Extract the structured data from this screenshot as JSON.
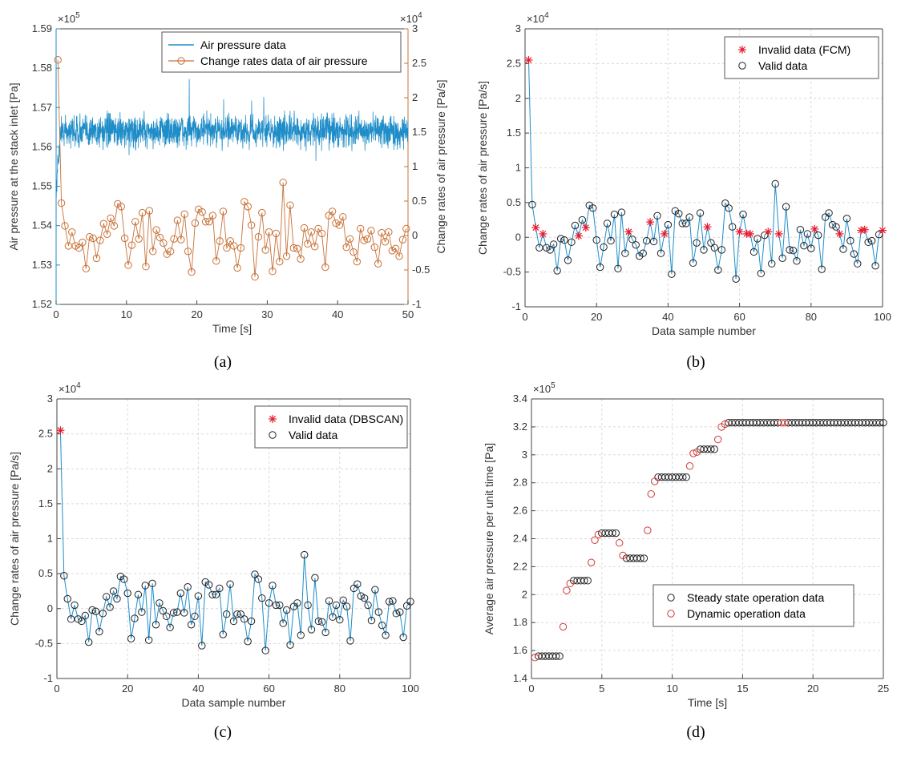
{
  "colors": {
    "blue": "#1f8dc8",
    "orange": "#c87137",
    "red": "#e8192c",
    "black": "#222222",
    "darkred": "#d23a3a",
    "axis": "#444444"
  },
  "chart_data": [
    {
      "id": "a",
      "type": "line",
      "caption": "(a)",
      "xlabel": "Time [s]",
      "ylabel": "Air pressure at the stack inlet [Pa]",
      "ylabel_right": "Change rates of air pressure [Pa/s]",
      "exponent_left": "5",
      "exponent_right": "4",
      "xlim": [
        0,
        50
      ],
      "ylim": [
        152000,
        159000
      ],
      "ylim_right": [
        -10000,
        30000
      ],
      "xticks": [
        0,
        10,
        20,
        30,
        40,
        50
      ],
      "xtick_labels": [
        "0",
        "10",
        "20",
        "30",
        "40",
        "50"
      ],
      "yticks": [
        152000,
        153000,
        154000,
        155000,
        156000,
        157000,
        158000,
        159000
      ],
      "ytick_labels": [
        "1.52",
        "1.53",
        "1.54",
        "1.55",
        "1.56",
        "1.57",
        "1.58",
        "1.59"
      ],
      "yticks_right": [
        -10000,
        -5000,
        0,
        5000,
        10000,
        15000,
        20000,
        25000,
        30000
      ],
      "ytick_labels_right": [
        "-1",
        "-0.5",
        "0",
        "0.5",
        "1",
        "1.5",
        "2",
        "2.5",
        "3"
      ],
      "legend": [
        "Air pressure data",
        "Change rates data of air pressure"
      ],
      "legend_position": "top-right",
      "series": [
        {
          "name": "Air pressure data",
          "axis": "left",
          "mean": 156400,
          "spread": 600,
          "start": 154800,
          "x_end": 50
        },
        {
          "name": "Change rates data of air pressure",
          "axis": "right",
          "x": [
            0.25,
            0.75,
            1.25,
            1.75,
            2.25,
            2.75,
            3.25,
            3.75,
            4.25,
            4.75,
            5.25,
            5.75,
            6.25,
            6.75,
            7.25,
            7.75,
            8.25,
            8.75,
            9.25,
            9.75,
            10.25,
            10.75,
            11.25,
            11.75,
            12.25,
            12.75,
            13.25,
            13.75,
            14.25,
            14.75,
            15.25,
            15.75,
            16.25,
            16.75,
            17.25,
            17.75,
            18.25,
            18.75,
            19.25,
            19.75,
            20.25,
            20.75,
            21.25,
            21.75,
            22.25,
            22.75,
            23.25,
            23.75,
            24.25,
            24.75,
            25.25,
            25.75,
            26.25,
            26.75,
            27.25,
            27.75,
            28.25,
            28.75,
            29.25,
            29.75,
            30.25,
            30.75,
            31.25,
            31.75,
            32.25,
            32.75,
            33.25,
            33.75,
            34.25,
            34.75,
            35.25,
            35.75,
            36.25,
            36.75,
            37.25,
            37.75,
            38.25,
            38.75,
            39.25,
            39.75,
            40.25,
            40.75,
            41.25,
            41.75,
            42.25,
            42.75,
            43.25,
            43.75,
            44.25,
            44.75,
            45.25,
            45.75,
            46.25,
            46.75,
            47.25,
            47.75,
            48.25,
            48.75,
            49.25,
            49.75
          ],
          "values": [
            25500,
            4700,
            1400,
            -1500,
            500,
            -1500,
            -1800,
            -1000,
            -4800,
            -200,
            -400,
            -3300,
            -700,
            1700,
            200,
            2500,
            1400,
            4600,
            4200,
            -400,
            -4300,
            -1400,
            2000,
            -500,
            3300,
            -4500,
            3600,
            -2300,
            800,
            -300,
            -1100,
            -2700,
            -2300,
            -500,
            2200,
            -600,
            3100,
            -2300,
            -5300,
            1800,
            3800,
            3400,
            2000,
            2000,
            2900,
            -3700,
            -800,
            3500,
            -1800,
            -800,
            -1500,
            -4700,
            -1800,
            4900,
            4200,
            1500,
            -6000,
            -200,
            3300,
            -2100,
            500,
            -5200,
            300,
            -3800,
            7700,
            -3000,
            4400,
            -1800,
            -1900,
            -3400,
            1100,
            -1200,
            500,
            -1600,
            1000,
            300,
            -4600,
            2900,
            3500,
            1800,
            1500,
            2700,
            -1700,
            -500,
            -2400,
            -3800,
            1000,
            -700,
            -500,
            700,
            -1700,
            -4100,
            400,
            -900,
            500,
            -2200,
            -1900,
            -3000,
            -600,
            1000
          ]
        }
      ]
    },
    {
      "id": "b",
      "type": "scatter",
      "caption": "(b)",
      "xlabel": "Data sample number",
      "ylabel": "Change rates of air pressure [Pa/s]",
      "exponent_left": "4",
      "xlim": [
        0,
        100
      ],
      "ylim": [
        -10000,
        30000
      ],
      "xticks": [
        0,
        20,
        40,
        60,
        80,
        100
      ],
      "xtick_labels": [
        "0",
        "20",
        "40",
        "60",
        "80",
        "100"
      ],
      "yticks": [
        -10000,
        -5000,
        0,
        5000,
        10000,
        15000,
        20000,
        25000,
        30000
      ],
      "ytick_labels": [
        "-1",
        "-0.5",
        "0",
        "0.5",
        "1",
        "1.5",
        "2",
        "2.5",
        "3"
      ],
      "legend": [
        "Invalid data (FCM)",
        "Valid data"
      ],
      "legend_position": "top-right",
      "invalid_indices": [
        1,
        3,
        5,
        15,
        17,
        29,
        35,
        39,
        51,
        60,
        62,
        63,
        68,
        71,
        81,
        88,
        94,
        95,
        100
      ],
      "values": [
        25500,
        4700,
        1400,
        -1500,
        500,
        -1500,
        -1800,
        -1000,
        -4800,
        -200,
        -400,
        -3300,
        -700,
        1700,
        200,
        2500,
        1400,
        4600,
        4200,
        -400,
        -4300,
        -1400,
        2000,
        -500,
        3300,
        -4500,
        3600,
        -2300,
        800,
        -300,
        -1100,
        -2700,
        -2300,
        -500,
        2200,
        -600,
        3100,
        -2300,
        500,
        1800,
        -5300,
        3800,
        3400,
        2000,
        2000,
        2900,
        -3700,
        -800,
        3500,
        -1800,
        1500,
        -800,
        -1500,
        -4700,
        -1800,
        4900,
        4200,
        1500,
        -6000,
        800,
        3300,
        500,
        500,
        -2100,
        -200,
        -5200,
        300,
        800,
        -3800,
        7700,
        500,
        -3000,
        4400,
        -1800,
        -1900,
        -3400,
        1100,
        -1200,
        500,
        -1600,
        1200,
        300,
        -4600,
        2900,
        3500,
        1800,
        1500,
        500,
        -1700,
        2700,
        -500,
        -2400,
        -3800,
        1000,
        1100,
        -700,
        -500,
        -4100,
        400,
        1000
      ]
    },
    {
      "id": "c",
      "type": "scatter",
      "caption": "(c)",
      "xlabel": "Data sample number",
      "ylabel": "Change rates of air pressure [Pa/s]",
      "exponent_left": "4",
      "xlim": [
        0,
        100
      ],
      "ylim": [
        -10000,
        30000
      ],
      "xticks": [
        0,
        20,
        40,
        60,
        80,
        100
      ],
      "xtick_labels": [
        "0",
        "20",
        "40",
        "60",
        "80",
        "100"
      ],
      "yticks": [
        -10000,
        -5000,
        0,
        5000,
        10000,
        15000,
        20000,
        25000,
        30000
      ],
      "ytick_labels": [
        "-1",
        "-0.5",
        "0",
        "0.5",
        "1",
        "1.5",
        "2",
        "2.5",
        "3"
      ],
      "legend": [
        "Invalid data (DBSCAN)",
        "Valid data"
      ],
      "legend_position": "top-right",
      "invalid_indices": [
        1
      ],
      "values": [
        25500,
        4700,
        1400,
        -1500,
        500,
        -1500,
        -1800,
        -1000,
        -4800,
        -200,
        -400,
        -3300,
        -700,
        1700,
        200,
        2500,
        1400,
        4600,
        4200,
        2200,
        -4300,
        -1400,
        2000,
        -500,
        3300,
        -4500,
        3600,
        -2300,
        800,
        -300,
        -1100,
        -2700,
        -600,
        -500,
        2200,
        -600,
        3100,
        -2300,
        -1100,
        1800,
        -5300,
        3800,
        3400,
        2000,
        2000,
        2900,
        -3700,
        -800,
        3500,
        -1800,
        -800,
        -800,
        -1500,
        -4700,
        -1800,
        4900,
        4200,
        1500,
        -6000,
        800,
        3300,
        500,
        500,
        -2100,
        -200,
        -5200,
        300,
        800,
        -3800,
        7700,
        500,
        -3000,
        4400,
        -1800,
        -1900,
        -3400,
        1100,
        -1200,
        500,
        -1600,
        1200,
        300,
        -4600,
        2900,
        3500,
        1800,
        1500,
        500,
        -1700,
        2700,
        -500,
        -2400,
        -3800,
        1000,
        1100,
        -700,
        -500,
        -4100,
        400,
        1000
      ]
    },
    {
      "id": "d",
      "type": "scatter",
      "caption": "(d)",
      "xlabel": "Time [s]",
      "ylabel": "Average air pressure per unit time [Pa]",
      "exponent_left": "5",
      "xlim": [
        0,
        25
      ],
      "ylim": [
        140000,
        340000
      ],
      "xticks": [
        0,
        5,
        10,
        15,
        20,
        25
      ],
      "xtick_labels": [
        "0",
        "5",
        "10",
        "15",
        "20",
        "25"
      ],
      "yticks": [
        140000,
        160000,
        180000,
        200000,
        220000,
        240000,
        260000,
        280000,
        300000,
        320000,
        340000
      ],
      "ytick_labels": [
        "1.4",
        "1.6",
        "1.8",
        "2",
        "2.2",
        "2.4",
        "2.6",
        "2.8",
        "3",
        "3.2",
        "3.4"
      ],
      "legend": [
        "Steady state operation data",
        "Dynamic operation data"
      ],
      "legend_position": "bottom-right",
      "steady": {
        "x": [
          0.5,
          0.75,
          1.0,
          1.25,
          1.5,
          1.75,
          2.0,
          3.0,
          3.25,
          3.5,
          3.75,
          4.0,
          5.0,
          5.25,
          5.5,
          5.75,
          6.0,
          6.75,
          7.0,
          7.25,
          7.5,
          7.75,
          8.0,
          9.0,
          9.25,
          9.5,
          9.75,
          10.0,
          10.25,
          10.5,
          10.75,
          11.0,
          12.0,
          12.25,
          12.5,
          12.75,
          13.0,
          14.0,
          14.25,
          14.5,
          14.75,
          15.0,
          15.25,
          15.5,
          15.75,
          16.0,
          16.25,
          16.5,
          16.75,
          17.0,
          17.25,
          17.5,
          18.25,
          18.5,
          18.75,
          19.0,
          19.25,
          19.5,
          19.75,
          20.0,
          20.25,
          20.5,
          20.75,
          21.0,
          21.25,
          21.5,
          21.75,
          22.0,
          22.25,
          22.5,
          22.75,
          23.0,
          23.25,
          23.5,
          23.75,
          24.0,
          24.25,
          24.5,
          24.75,
          25.0
        ],
        "values": [
          156000,
          156000,
          156000,
          156000,
          156000,
          156000,
          156000,
          210000,
          210000,
          210000,
          210000,
          210000,
          244000,
          244000,
          244000,
          244000,
          244000,
          226000,
          226000,
          226000,
          226000,
          226000,
          226000,
          284000,
          284000,
          284000,
          284000,
          284000,
          284000,
          284000,
          284000,
          284000,
          304000,
          304000,
          304000,
          304000,
          304000,
          323000,
          323000,
          323000,
          323000,
          323000,
          323000,
          323000,
          323000,
          323000,
          323000,
          323000,
          323000,
          323000,
          323000,
          323000,
          323000,
          323000,
          323000,
          323000,
          323000,
          323000,
          323000,
          323000,
          323000,
          323000,
          323000,
          323000,
          323000,
          323000,
          323000,
          323000,
          323000,
          323000,
          323000,
          323000,
          323000,
          323000,
          323000,
          323000,
          323000,
          323000,
          323000,
          323000
        ]
      },
      "dynamic": {
        "x": [
          0.25,
          2.25,
          2.5,
          2.75,
          4.25,
          4.5,
          4.75,
          6.25,
          6.5,
          8.25,
          8.5,
          8.75,
          11.25,
          11.5,
          11.75,
          13.25,
          13.5,
          13.75,
          17.75,
          18.0
        ],
        "values": [
          155000,
          177000,
          203000,
          208000,
          223000,
          239000,
          243000,
          237000,
          228000,
          246000,
          272000,
          281000,
          292000,
          301000,
          302000,
          311000,
          320000,
          322000,
          323000,
          323000
        ]
      }
    }
  ]
}
